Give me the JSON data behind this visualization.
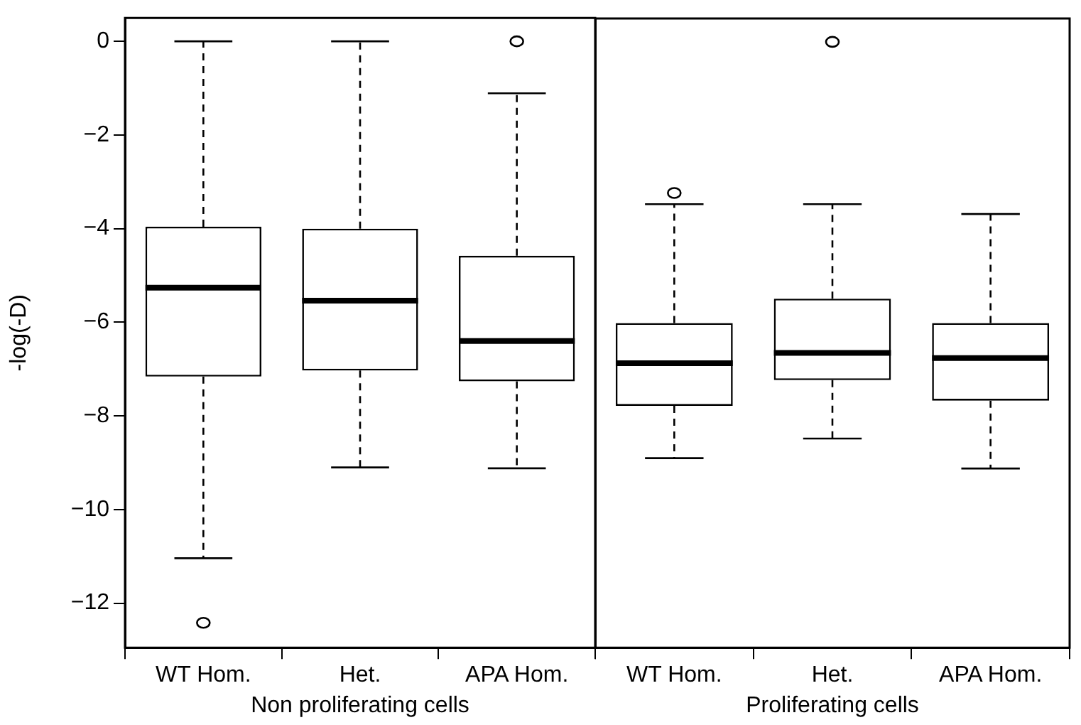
{
  "chart_data": [
    {
      "type": "box",
      "ylabel": "-log(-D)",
      "xlabel": "Non proliferating cells",
      "categories": [
        "WT Hom.",
        "Het.",
        "APA Hom."
      ],
      "ylim": [
        -12.95,
        0.5
      ],
      "yticks": [
        0,
        -2,
        -4,
        -6,
        -8,
        -10,
        -12
      ],
      "grid": false,
      "legend": false,
      "color": "#000000",
      "boxes": [
        {
          "low": -11.04,
          "q1": -7.16,
          "median": -5.26,
          "q3": -3.96,
          "high": 0,
          "outliers": [
            -12.42
          ]
        },
        {
          "low": -9.1,
          "q1": -7.03,
          "median": -5.54,
          "q3": -4.0,
          "high": 0
        },
        {
          "low": -9.12,
          "q1": -7.26,
          "median": -6.4,
          "q3": -4.58,
          "high": -1.11,
          "outliers": [
            0
          ]
        }
      ]
    },
    {
      "type": "box",
      "xlabel": "Proliferating cells",
      "categories": [
        "WT Hom.",
        "Het.",
        "APA Hom."
      ],
      "ylim": [
        -12.95,
        0.5
      ],
      "yticks": [
        0,
        -2,
        -4,
        -6,
        -8,
        -10,
        -12
      ],
      "tick_labels": "x",
      "grid": false,
      "legend": false,
      "color": "#000000",
      "boxes": [
        {
          "low": -8.9,
          "q1": -7.78,
          "median": -6.87,
          "q3": -6.01,
          "high": -3.47,
          "outliers": [
            -3.23
          ]
        },
        {
          "low": -8.48,
          "q1": -7.23,
          "median": -6.65,
          "q3": -5.49,
          "high": -3.47,
          "outliers": [
            0
          ]
        },
        {
          "low": -9.12,
          "q1": -7.67,
          "median": -6.76,
          "q3": -6.01,
          "high": -3.68
        }
      ]
    }
  ]
}
